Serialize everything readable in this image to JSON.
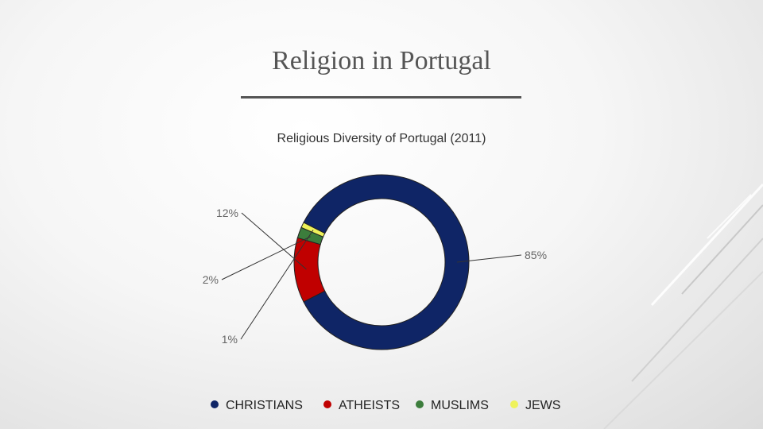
{
  "slide": {
    "title": "Religion in Portugal"
  },
  "chart_data": {
    "type": "pie",
    "subtype": "doughnut",
    "title": "Religious Diversity of Portugal (2011)",
    "categories": [
      "CHRISTIANS",
      "ATHEISTS",
      "MUSLIMS",
      "JEWS"
    ],
    "values": [
      85,
      12,
      2,
      1
    ],
    "labels": [
      "85%",
      "12%",
      "2%",
      "1%"
    ],
    "colors": [
      "#0f2566",
      "#c00000",
      "#3c7d3c",
      "#eef25a"
    ],
    "legend_position": "bottom",
    "start_angle_deg": -153
  }
}
